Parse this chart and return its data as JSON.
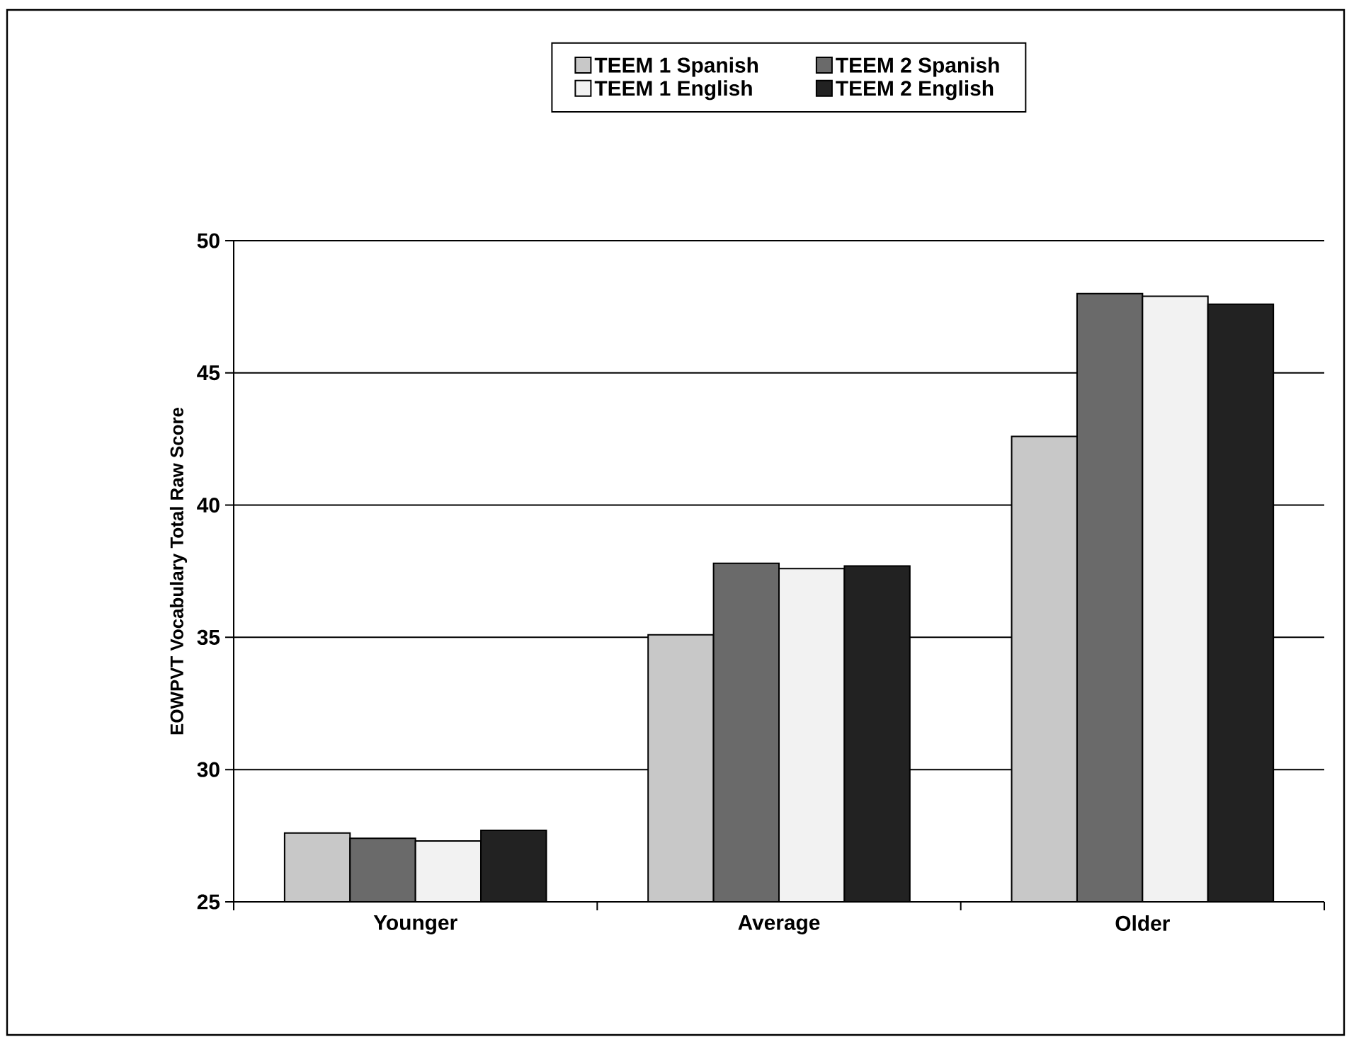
{
  "chart_data": {
    "type": "bar",
    "ylabel": "EOWPVT Vocabulary  Total Raw Score",
    "categories": [
      "Younger",
      "Average",
      "Older"
    ],
    "series": [
      {
        "name": "TEEM 1 Spanish",
        "color": "#c8c8c8",
        "values": [
          27.6,
          35.1,
          42.6
        ]
      },
      {
        "name": "TEEM 2 Spanish",
        "color": "#6a6a6a",
        "values": [
          27.4,
          37.8,
          48.0
        ]
      },
      {
        "name": "TEEM 1 English",
        "color": "#f2f2f2",
        "values": [
          27.3,
          37.6,
          47.9
        ]
      },
      {
        "name": "TEEM 2 English",
        "color": "#222222",
        "values": [
          27.7,
          37.7,
          47.6
        ]
      }
    ],
    "ylim": [
      25,
      50
    ],
    "yticks": [
      25,
      30,
      35,
      40,
      45,
      50
    ],
    "grid": "y",
    "legend": "top"
  }
}
